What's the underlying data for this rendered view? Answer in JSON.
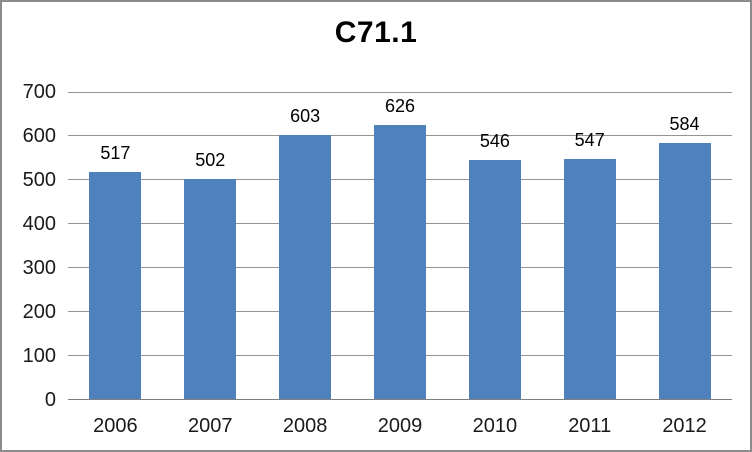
{
  "chart_data": {
    "type": "bar",
    "title": "C71.1",
    "categories": [
      "2006",
      "2007",
      "2008",
      "2009",
      "2010",
      "2011",
      "2012"
    ],
    "values": [
      517,
      502,
      603,
      626,
      546,
      547,
      584
    ],
    "data_labels_shown": true,
    "xlabel": "",
    "ylabel": "",
    "ylim": [
      0,
      700
    ],
    "ytick_interval": 100,
    "ytick_labels": [
      "0",
      "100",
      "200",
      "300",
      "400",
      "500",
      "600",
      "700"
    ],
    "grid": true,
    "legend": false,
    "colors": {
      "bar_fill": "#4f81bd",
      "gridline": "#949494",
      "axis_line": "#7f7f7f",
      "frame_border": "#8c8c8c",
      "background": "#ffffff",
      "text": "#000000"
    }
  }
}
